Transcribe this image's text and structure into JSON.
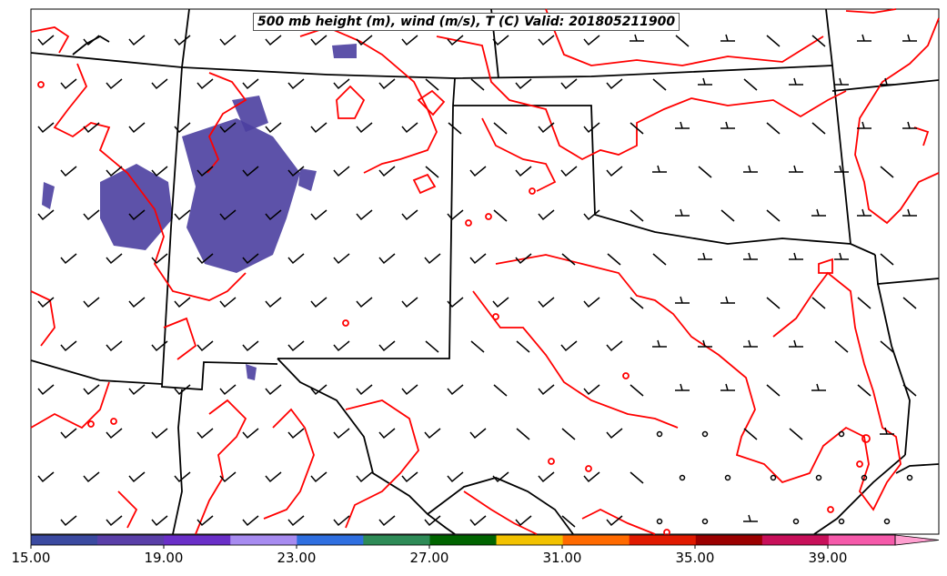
{
  "title": "500 mb height (m), wind (m/s), T (C) Valid: 201805211900",
  "colorbar": {
    "tick_labels": [
      "15.00",
      "19.00",
      "23.00",
      "27.00",
      "31.00",
      "35.00",
      "39.00"
    ],
    "colors": [
      "#3b4aa0",
      "#5a3fa8",
      "#6a2fc8",
      "#a78bf0",
      "#2f6fe0",
      "#2e8b57",
      "#006400",
      "#f2c200",
      "#ff6a00",
      "#e01a00",
      "#9b0000",
      "#c8105a",
      "#f55aaa",
      "#ff9fd0"
    ]
  },
  "colors": {
    "temperature_contour": "#ff0000",
    "borders": "#000000",
    "shading": "#4b3fa0"
  }
}
